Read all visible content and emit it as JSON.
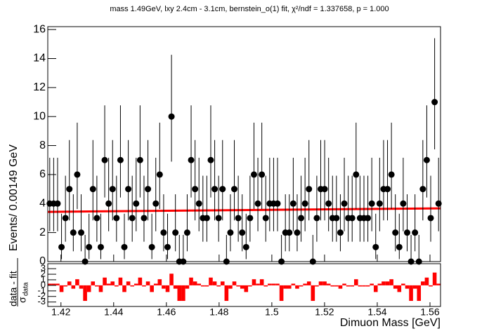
{
  "chart_data": [
    {
      "type": "errorbar",
      "title": "mass 1.49GeV, lxy 2.4cm - 3.1cm, bernstein_o(1) fit, χ²/ndf = 1.337658, p = 1.000",
      "y_label": "Events/ 0.00149 GeV",
      "color": "#000000",
      "x": [
        1.415745,
        1.417235,
        1.418725,
        1.420215,
        1.421705,
        1.423195,
        1.424685,
        1.426175,
        1.427665,
        1.429155,
        1.430645,
        1.432135,
        1.433625,
        1.435115,
        1.436605,
        1.438095,
        1.439585,
        1.441075,
        1.442565,
        1.444055,
        1.445545,
        1.447035,
        1.448525,
        1.450015,
        1.451505,
        1.452995,
        1.454485,
        1.455975,
        1.457465,
        1.458955,
        1.460445,
        1.461935,
        1.463425,
        1.464915,
        1.466405,
        1.467895,
        1.469385,
        1.470875,
        1.472365,
        1.473855,
        1.475345,
        1.476835,
        1.478325,
        1.479815,
        1.481305,
        1.482795,
        1.484285,
        1.485775,
        1.487265,
        1.488755,
        1.490245,
        1.491735,
        1.493225,
        1.494715,
        1.496205,
        1.497695,
        1.499185,
        1.500675,
        1.502165,
        1.503655,
        1.505145,
        1.506635,
        1.508125,
        1.509615,
        1.511105,
        1.512595,
        1.514085,
        1.515575,
        1.517065,
        1.518555,
        1.520045,
        1.521535,
        1.523025,
        1.524515,
        1.526005,
        1.527495,
        1.528985,
        1.530475,
        1.531965,
        1.533455,
        1.534945,
        1.536435,
        1.537925,
        1.539415,
        1.540905,
        1.542395,
        1.543885,
        1.545375,
        1.546865,
        1.548355,
        1.549845,
        1.551335,
        1.552825,
        1.554315,
        1.555805,
        1.557295,
        1.558785,
        1.560275,
        1.561765,
        1.563255
      ],
      "values": [
        4,
        4,
        4,
        1,
        3,
        5,
        2,
        6,
        2,
        0,
        1,
        5,
        3,
        1,
        7,
        4,
        5,
        3,
        7,
        1,
        5,
        3,
        4,
        7,
        3,
        5,
        1,
        4,
        6,
        2,
        1,
        10,
        2,
        0,
        0,
        2,
        7,
        5,
        4,
        3,
        3,
        7,
        5,
        3,
        5,
        0,
        2,
        5,
        3,
        2,
        1,
        3,
        6,
        4,
        6,
        3,
        4,
        4,
        4,
        0,
        2,
        2,
        4,
        2,
        3,
        4,
        5,
        0,
        3,
        5,
        5,
        4,
        3,
        3,
        2,
        4,
        3,
        3,
        6,
        3,
        3,
        3,
        4,
        1,
        4,
        5,
        5,
        6,
        2,
        1,
        4,
        2,
        0,
        2,
        0,
        5,
        7,
        3,
        11,
        4
      ],
      "errors_low": [
        1.91,
        1.91,
        1.91,
        0.83,
        1.63,
        2.16,
        1.29,
        2.38,
        1.29,
        0,
        0.83,
        2.16,
        1.63,
        0.83,
        2.58,
        1.91,
        2.16,
        1.63,
        2.58,
        0.83,
        2.16,
        1.63,
        1.91,
        2.58,
        1.63,
        2.16,
        0.83,
        1.91,
        2.38,
        1.29,
        0.83,
        3.11,
        1.29,
        0,
        0,
        1.29,
        2.58,
        2.16,
        1.91,
        1.63,
        1.63,
        2.58,
        2.16,
        1.63,
        2.16,
        0,
        1.29,
        2.16,
        1.63,
        1.29,
        0.83,
        1.63,
        2.38,
        1.91,
        2.38,
        1.63,
        1.91,
        1.91,
        1.91,
        0,
        1.29,
        1.29,
        1.91,
        1.29,
        1.63,
        1.91,
        2.16,
        0,
        1.63,
        2.16,
        2.16,
        1.91,
        1.63,
        1.63,
        1.29,
        1.91,
        1.63,
        1.63,
        2.38,
        1.63,
        1.63,
        1.63,
        1.91,
        0.83,
        1.91,
        2.16,
        2.16,
        2.38,
        1.29,
        0.83,
        1.91,
        1.29,
        0,
        1.29,
        0,
        2.16,
        2.58,
        1.63,
        3.26,
        1.91
      ],
      "errors_high": [
        3.16,
        3.16,
        3.16,
        2.3,
        2.92,
        3.38,
        2.64,
        3.58,
        2.64,
        1.84,
        2.3,
        3.38,
        2.92,
        2.3,
        3.77,
        3.16,
        3.38,
        2.92,
        3.77,
        2.3,
        3.38,
        2.92,
        3.16,
        3.77,
        2.92,
        3.38,
        2.3,
        3.16,
        3.58,
        2.64,
        2.3,
        4.26,
        2.64,
        1.84,
        1.84,
        2.64,
        3.77,
        3.38,
        3.16,
        2.92,
        2.92,
        3.77,
        3.38,
        2.92,
        3.38,
        1.84,
        2.64,
        3.38,
        2.92,
        2.64,
        2.3,
        2.92,
        3.58,
        3.16,
        3.58,
        2.92,
        3.16,
        3.16,
        3.16,
        1.84,
        2.64,
        2.64,
        3.16,
        2.64,
        2.92,
        3.16,
        3.38,
        1.84,
        2.92,
        3.38,
        3.38,
        3.16,
        2.92,
        2.92,
        2.64,
        3.16,
        2.92,
        2.92,
        3.58,
        2.92,
        2.92,
        2.92,
        3.16,
        2.3,
        3.16,
        3.38,
        3.38,
        3.58,
        2.64,
        2.3,
        3.16,
        2.64,
        1.84,
        2.64,
        1.84,
        3.38,
        3.77,
        2.92,
        4.4,
        3.16
      ],
      "fit": {
        "x": [
          1.415,
          1.564
        ],
        "y": [
          3.43,
          3.67
        ],
        "color": "#ff0000"
      },
      "xlim": [
        1.415,
        1.564
      ],
      "xticks": [
        1.42,
        1.44,
        1.46,
        1.48,
        1.5,
        1.52,
        1.54,
        1.56
      ],
      "ylim": [
        0,
        16.2
      ],
      "yticks": [
        0,
        2,
        4,
        6,
        8,
        10,
        12,
        14,
        16
      ]
    },
    {
      "type": "bar",
      "y_label_numerator": "data - fit",
      "y_label_denominator": "σ",
      "y_label_denominator_sub": "data",
      "x_label": "Dimuon Mass [GeV]",
      "color": "#ff0000",
      "x": [
        1.415745,
        1.417235,
        1.418725,
        1.420215,
        1.421705,
        1.423195,
        1.424685,
        1.426175,
        1.427665,
        1.429155,
        1.430645,
        1.432135,
        1.433625,
        1.435115,
        1.436605,
        1.438095,
        1.439585,
        1.441075,
        1.442565,
        1.444055,
        1.445545,
        1.447035,
        1.448525,
        1.450015,
        1.451505,
        1.452995,
        1.454485,
        1.455975,
        1.457465,
        1.458955,
        1.460445,
        1.461935,
        1.463425,
        1.464915,
        1.466405,
        1.467895,
        1.469385,
        1.470875,
        1.472365,
        1.473855,
        1.475345,
        1.476835,
        1.478325,
        1.479815,
        1.481305,
        1.482795,
        1.484285,
        1.485775,
        1.487265,
        1.488755,
        1.490245,
        1.491735,
        1.493225,
        1.494715,
        1.496205,
        1.497695,
        1.499185,
        1.500675,
        1.502165,
        1.503655,
        1.505145,
        1.506635,
        1.508125,
        1.509615,
        1.511105,
        1.512595,
        1.514085,
        1.515575,
        1.517065,
        1.518555,
        1.520045,
        1.521535,
        1.523025,
        1.524515,
        1.526005,
        1.527495,
        1.528985,
        1.530475,
        1.531965,
        1.533455,
        1.534945,
        1.536435,
        1.537925,
        1.539415,
        1.540905,
        1.542395,
        1.543885,
        1.545375,
        1.546865,
        1.548355,
        1.549845,
        1.551335,
        1.552825,
        1.554315,
        1.555805,
        1.557295,
        1.558785,
        1.560275,
        1.561765,
        1.563255
      ],
      "values": [
        0.3,
        0.3,
        0.3,
        -1.2,
        -0.2,
        0.7,
        -0.6,
        1.1,
        -0.6,
        -2.8,
        -1.2,
        0.7,
        -0.2,
        -1.2,
        1.4,
        0.3,
        0.7,
        -0.2,
        1.4,
        -1.2,
        0.7,
        -0.2,
        0.3,
        1.4,
        -0.2,
        0.7,
        -1.2,
        0.3,
        1.1,
        -0.6,
        -1.2,
        2.1,
        -0.6,
        -2.8,
        -2.8,
        -0.6,
        1.4,
        0.7,
        0.3,
        -0.2,
        -0.2,
        1.4,
        0.7,
        -0.2,
        0.7,
        -2.8,
        -0.6,
        0.7,
        -0.2,
        -0.6,
        -1.2,
        -0.2,
        1.1,
        0.3,
        1.1,
        -0.2,
        0.3,
        0.3,
        0.3,
        -2.8,
        -0.6,
        -0.6,
        0.3,
        -0.6,
        -0.2,
        0.3,
        0.7,
        -2.8,
        -0.2,
        0.7,
        0.7,
        0.3,
        -0.2,
        -0.2,
        -0.6,
        0.3,
        -0.2,
        -0.2,
        1.1,
        -0.2,
        -0.2,
        -0.2,
        0.3,
        -1.2,
        0.3,
        0.7,
        0.7,
        1.1,
        -0.6,
        -1.2,
        0.3,
        -0.6,
        -2.8,
        -0.6,
        -2.8,
        0.7,
        1.4,
        -0.2,
        2.3,
        0.3
      ],
      "bin_width": 0.00149,
      "xlim": [
        1.415,
        1.564
      ],
      "xticks": [
        1.42,
        1.44,
        1.46,
        1.48,
        1.5,
        1.52,
        1.54,
        1.56
      ],
      "ylim": [
        -3.8,
        3.9
      ],
      "yticks": [
        -3,
        -2,
        -1,
        0,
        1,
        2,
        3
      ]
    }
  ]
}
